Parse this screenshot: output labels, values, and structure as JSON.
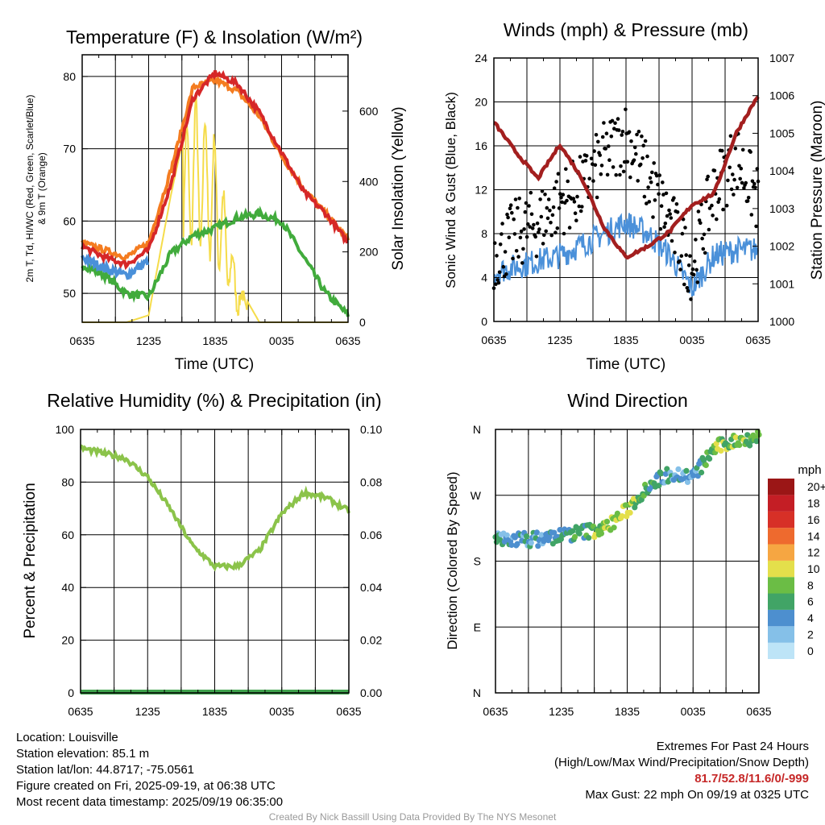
{
  "charts": {
    "temp": {
      "title": "Temperature (F) & Insolation (W/m²)",
      "ylabel_left_line1": "2m T, Td, HI/WC (Red, Green, Scarlet/Blue)",
      "ylabel_left_line2": "& 9m T (Orange)",
      "ylabel_right": "Solar Insolation (Yellow)",
      "xlabel": "Time (UTC)",
      "x_ticks": [
        "0635",
        "1235",
        "1835",
        "0035",
        "0635"
      ],
      "y_left_ticks": [
        "50",
        "60",
        "70",
        "80"
      ],
      "y_right_ticks": [
        "0",
        "200",
        "400",
        "600"
      ]
    },
    "winds": {
      "title": "Winds (mph) & Pressure (mb)",
      "ylabel_left": "Sonic Wind & Gust (Blue, Black)",
      "ylabel_right": "Station Pressure (Maroon)",
      "xlabel": "Time (UTC)",
      "x_ticks": [
        "0635",
        "1235",
        "1835",
        "0035",
        "0635"
      ],
      "y_left_ticks": [
        "0",
        "4",
        "8",
        "12",
        "16",
        "20",
        "24"
      ],
      "y_right_ticks": [
        "1000",
        "1001",
        "1002",
        "1003",
        "1004",
        "1005",
        "1006",
        "1007"
      ]
    },
    "rh": {
      "title": "Relative Humidity (%) & Precipitation (in)",
      "ylabel_left": "Percent & Precipitation",
      "x_ticks": [
        "0635",
        "1235",
        "1835",
        "0035",
        "0635"
      ],
      "y_left_ticks": [
        "0",
        "20",
        "40",
        "60",
        "80",
        "100"
      ],
      "y_right_ticks": [
        "0.00",
        "0.02",
        "0.04",
        "0.06",
        "0.08",
        "0.10"
      ]
    },
    "wdir": {
      "title": "Wind Direction",
      "ylabel_left": "Direction (Colored By Speed)",
      "x_ticks": [
        "0635",
        "1235",
        "1835",
        "0035",
        "0635"
      ],
      "y_ticks": [
        "N",
        "E",
        "S",
        "W",
        "N"
      ],
      "colorbar_title": "mph",
      "colorbar_labels": [
        "0",
        "2",
        "4",
        "6",
        "8",
        "10",
        "12",
        "14",
        "16",
        "18",
        "20+"
      ],
      "colorbar_colors": [
        "#bde4f7",
        "#85c0e8",
        "#4d8fcf",
        "#41a466",
        "#6bbd45",
        "#e4df4b",
        "#f6a642",
        "#ee6a2e",
        "#d73027",
        "#c41e25",
        "#9b1616"
      ]
    }
  },
  "chart_data": [
    {
      "type": "line",
      "title": "Temperature (F) & Insolation (W/m²)",
      "xlabel": "Time (UTC)",
      "ylabel": "2m T, Td, HI/WC (Red, Green, Scarlet/Blue) & 9m T (Orange)",
      "y2label": "Solar Insolation (Yellow)",
      "x": [
        "0635",
        "0835",
        "1035",
        "1235",
        "1435",
        "1635",
        "1835",
        "2035",
        "2235",
        "0035",
        "0235",
        "0435",
        "0635"
      ],
      "ylim": [
        46,
        83
      ],
      "y2lim": [
        0,
        760
      ],
      "grid": true,
      "series": [
        {
          "name": "2m T",
          "color": "#d62728",
          "axis": "left",
          "values": [
            56.5,
            55,
            54,
            56,
            65,
            77,
            80.5,
            79,
            75,
            69.5,
            64,
            61,
            57
          ]
        },
        {
          "name": "9m T",
          "color": "#f47c20",
          "axis": "left",
          "values": [
            57,
            56,
            55,
            57,
            67,
            78.5,
            79.5,
            78,
            74.5,
            69,
            64.5,
            61,
            57.5
          ]
        },
        {
          "name": "Td",
          "color": "#41ab3c",
          "axis": "left",
          "values": [
            54,
            52.5,
            50,
            49.5,
            55.5,
            58,
            59,
            60.5,
            61,
            60,
            55,
            50,
            47
          ]
        },
        {
          "name": "HI/WC",
          "color": "#4a90d9",
          "axis": "left",
          "values": [
            55,
            53.5,
            52.5,
            54.5,
            null,
            null,
            null,
            null,
            null,
            null,
            null,
            null,
            56
          ]
        },
        {
          "name": "Solar Insolation",
          "color": "#f5dc4a",
          "axis": "right",
          "values": [
            0,
            0,
            0,
            20,
            360,
            650,
            520,
            110,
            0,
            0,
            0,
            0,
            0
          ]
        }
      ]
    },
    {
      "type": "line",
      "title": "Winds (mph) & Pressure (mb)",
      "xlabel": "Time (UTC)",
      "ylabel": "Sonic Wind & Gust (Blue, Black)",
      "y2label": "Station Pressure (Maroon)",
      "x": [
        "0635",
        "0835",
        "1035",
        "1235",
        "1435",
        "1635",
        "1835",
        "2035",
        "2235",
        "0035",
        "0235",
        "0435",
        "0635"
      ],
      "ylim": [
        0,
        24
      ],
      "y2lim": [
        1000,
        1007
      ],
      "grid": true,
      "series": [
        {
          "name": "Sonic Wind",
          "color": "#4a90d9",
          "axis": "left",
          "values": [
            4.5,
            5,
            5.5,
            6,
            7,
            8,
            9,
            8,
            6,
            3,
            6,
            6.5,
            6.5
          ]
        },
        {
          "name": "Gust",
          "color": "#000000",
          "axis": "left",
          "type": "scatter",
          "values": [
            6,
            8,
            9,
            11,
            12,
            15,
            17,
            13,
            9,
            5,
            12,
            15,
            11
          ]
        },
        {
          "name": "Station Pressure",
          "color": "#a31f1f",
          "axis": "right",
          "values": [
            1005.3,
            1004.5,
            1003.8,
            1004.7,
            1003.8,
            1002.5,
            1001.7,
            1002.0,
            1002.4,
            1003.1,
            1003.4,
            1005.0,
            1006.0
          ]
        }
      ]
    },
    {
      "type": "line",
      "title": "Relative Humidity (%) & Precipitation (in)",
      "ylabel": "Percent & Precipitation",
      "x": [
        "0635",
        "0835",
        "1035",
        "1235",
        "1435",
        "1635",
        "1835",
        "2035",
        "2235",
        "0035",
        "0235",
        "0435",
        "0635"
      ],
      "ylim": [
        0,
        100
      ],
      "y2lim": [
        0,
        0.1
      ],
      "grid": true,
      "series": [
        {
          "name": "Relative Humidity",
          "color": "#8bc34a",
          "axis": "left",
          "values": [
            93,
            91,
            89,
            82,
            70,
            56,
            48,
            48,
            54,
            68,
            76,
            74,
            69
          ]
        },
        {
          "name": "Precipitation",
          "color": "#3fa34d",
          "axis": "right",
          "values": [
            0,
            0,
            0,
            0,
            0,
            0,
            0,
            0,
            0,
            0,
            0,
            0,
            0
          ]
        }
      ]
    },
    {
      "type": "scatter",
      "title": "Wind Direction",
      "ylabel": "Direction (Colored By Speed)",
      "y_ticks": [
        "N",
        "E",
        "S",
        "W",
        "N"
      ],
      "ylim": [
        0,
        360
      ],
      "x": [
        "0635",
        "0835",
        "1035",
        "1235",
        "1435",
        "1635",
        "1835",
        "2035",
        "2235",
        "0035",
        "0235",
        "0435",
        "0635"
      ],
      "series": [
        {
          "name": "Direction",
          "values": [
            210,
            210,
            210,
            215,
            220,
            225,
            250,
            285,
            300,
            295,
            335,
            345,
            350
          ],
          "speed": [
            4,
            4,
            4,
            5,
            6,
            9,
            9,
            6,
            4,
            3,
            8,
            8,
            7
          ]
        }
      ],
      "colorbar": {
        "title": "mph",
        "labels": [
          "0",
          "2",
          "4",
          "6",
          "8",
          "10",
          "12",
          "14",
          "16",
          "18",
          "20+"
        ]
      }
    }
  ],
  "footer": {
    "location": "Location: Louisville",
    "elevation": "Station elevation: 85.1 m",
    "latlon": "Station lat/lon: 44.8717; -75.0561",
    "created": "Figure created on Fri, 2025-09-19, at 06:38 UTC",
    "recent": "Most recent data timestamp: 2025/09/19 06:35:00",
    "extremes_title": "Extremes For Past 24 Hours",
    "extremes_sub": "(High/Low/Max Wind/Precipitation/Snow Depth)",
    "extremes_values": "81.7/52.8/11.6/0/-999",
    "max_gust": "Max Gust: 22 mph On 09/19 at 0325 UTC",
    "credit": "Created By Nick Bassill Using Data Provided By The NYS Mesonet"
  }
}
